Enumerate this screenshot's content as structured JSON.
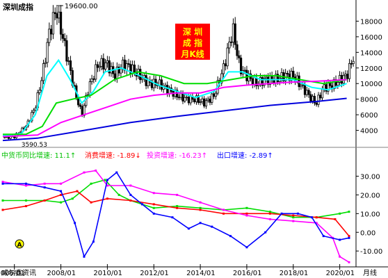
{
  "title": "深圳成指",
  "badge": {
    "lines": [
      "深  圳",
      "成  指",
      "月K线"
    ],
    "bg": "#ff0000",
    "fg": "#ffff00"
  },
  "annotations": {
    "peak_label": "19600.00",
    "low_label": "3590.53"
  },
  "indicator_legend": [
    {
      "text": "中货币同比增速: 11.1↑",
      "color": "#00c000"
    },
    {
      "text": "消费增速: -1.89↓",
      "color": "#ff0000"
    },
    {
      "text": "投资增速: -16.23↑",
      "color": "#ff00ff"
    },
    {
      "text": "出口增速: -2.89↑",
      "color": "#0000ff"
    }
  ],
  "footer": {
    "source_label": "威尔鑫资讯",
    "end_label": "月线"
  },
  "chart_data": [
    {
      "type": "candlestick",
      "title": "深圳成指",
      "x_ticks": [
        "006/01",
        "2008/01",
        "2010/01",
        "2012/01",
        "2014/01",
        "2016/01",
        "2018/01",
        "2020/01"
      ],
      "y_ticks": [
        4000,
        6000,
        8000,
        10000,
        12000,
        14000,
        16000,
        18000
      ],
      "ylim": [
        2000,
        20000
      ],
      "grid": false,
      "close_points": [
        {
          "x": 2005.5,
          "y": 3100
        },
        {
          "x": 2006.0,
          "y": 3200
        },
        {
          "x": 2006.5,
          "y": 4500
        },
        {
          "x": 2006.9,
          "y": 7000
        },
        {
          "x": 2007.2,
          "y": 11000
        },
        {
          "x": 2007.5,
          "y": 16500
        },
        {
          "x": 2007.8,
          "y": 19600
        },
        {
          "x": 2008.0,
          "y": 17000
        },
        {
          "x": 2008.3,
          "y": 13000
        },
        {
          "x": 2008.6,
          "y": 9000
        },
        {
          "x": 2008.9,
          "y": 6000
        },
        {
          "x": 2009.2,
          "y": 9500
        },
        {
          "x": 2009.6,
          "y": 12500
        },
        {
          "x": 2010.0,
          "y": 12500
        },
        {
          "x": 2010.3,
          "y": 11000
        },
        {
          "x": 2010.7,
          "y": 12500
        },
        {
          "x": 2011.0,
          "y": 12000
        },
        {
          "x": 2011.4,
          "y": 11000
        },
        {
          "x": 2011.8,
          "y": 10000
        },
        {
          "x": 2012.2,
          "y": 10000
        },
        {
          "x": 2012.6,
          "y": 9200
        },
        {
          "x": 2013.0,
          "y": 8500
        },
        {
          "x": 2013.4,
          "y": 8000
        },
        {
          "x": 2013.8,
          "y": 8000
        },
        {
          "x": 2014.2,
          "y": 7500
        },
        {
          "x": 2014.6,
          "y": 8500
        },
        {
          "x": 2015.0,
          "y": 12000
        },
        {
          "x": 2015.4,
          "y": 17000
        },
        {
          "x": 2015.7,
          "y": 12000
        },
        {
          "x": 2016.0,
          "y": 11000
        },
        {
          "x": 2016.4,
          "y": 10000
        },
        {
          "x": 2016.8,
          "y": 10500
        },
        {
          "x": 2017.2,
          "y": 10500
        },
        {
          "x": 2017.6,
          "y": 11000
        },
        {
          "x": 2018.0,
          "y": 11000
        },
        {
          "x": 2018.4,
          "y": 9500
        },
        {
          "x": 2018.8,
          "y": 8000
        },
        {
          "x": 2019.0,
          "y": 7500
        },
        {
          "x": 2019.3,
          "y": 9500
        },
        {
          "x": 2019.7,
          "y": 9800
        },
        {
          "x": 2020.0,
          "y": 10500
        },
        {
          "x": 2020.3,
          "y": 11000
        },
        {
          "x": 2020.6,
          "y": 13500
        }
      ],
      "moving_averages": [
        {
          "color": "#00ffff",
          "points": [
            {
              "x": 2005.5,
              "y": 3300
            },
            {
              "x": 2006.3,
              "y": 3600
            },
            {
              "x": 2006.9,
              "y": 6000
            },
            {
              "x": 2007.4,
              "y": 11000
            },
            {
              "x": 2007.9,
              "y": 13000
            },
            {
              "x": 2008.4,
              "y": 10500
            },
            {
              "x": 2008.9,
              "y": 7500
            },
            {
              "x": 2009.4,
              "y": 9000
            },
            {
              "x": 2009.9,
              "y": 11500
            },
            {
              "x": 2010.6,
              "y": 12000
            },
            {
              "x": 2011.4,
              "y": 11000
            },
            {
              "x": 2012.2,
              "y": 9800
            },
            {
              "x": 2013.0,
              "y": 9000
            },
            {
              "x": 2013.8,
              "y": 8200
            },
            {
              "x": 2014.6,
              "y": 9000
            },
            {
              "x": 2015.2,
              "y": 11500
            },
            {
              "x": 2015.8,
              "y": 11500
            },
            {
              "x": 2016.6,
              "y": 10500
            },
            {
              "x": 2017.4,
              "y": 10500
            },
            {
              "x": 2018.0,
              "y": 10500
            },
            {
              "x": 2018.8,
              "y": 9500
            },
            {
              "x": 2019.5,
              "y": 9200
            },
            {
              "x": 2020.3,
              "y": 10000
            }
          ]
        },
        {
          "color": "#00dd00",
          "points": [
            {
              "x": 2005.5,
              "y": 3500
            },
            {
              "x": 2006.5,
              "y": 3500
            },
            {
              "x": 2007.2,
              "y": 4500
            },
            {
              "x": 2007.8,
              "y": 7500
            },
            {
              "x": 2008.5,
              "y": 8000
            },
            {
              "x": 2009.3,
              "y": 8500
            },
            {
              "x": 2010.3,
              "y": 10500
            },
            {
              "x": 2011.3,
              "y": 11500
            },
            {
              "x": 2012.3,
              "y": 11000
            },
            {
              "x": 2013.3,
              "y": 10000
            },
            {
              "x": 2014.3,
              "y": 10000
            },
            {
              "x": 2015.3,
              "y": 10500
            },
            {
              "x": 2016.3,
              "y": 11000
            },
            {
              "x": 2017.3,
              "y": 11000
            },
            {
              "x": 2018.3,
              "y": 10500
            },
            {
              "x": 2019.3,
              "y": 10000
            },
            {
              "x": 2020.3,
              "y": 10500
            }
          ]
        },
        {
          "color": "#ff00ff",
          "points": [
            {
              "x": 2005.5,
              "y": 3200
            },
            {
              "x": 2007.0,
              "y": 3400
            },
            {
              "x": 2008.0,
              "y": 5000
            },
            {
              "x": 2009.0,
              "y": 6000
            },
            {
              "x": 2010.0,
              "y": 7000
            },
            {
              "x": 2011.0,
              "y": 8000
            },
            {
              "x": 2012.0,
              "y": 8500
            },
            {
              "x": 2013.0,
              "y": 8800
            },
            {
              "x": 2014.0,
              "y": 8800
            },
            {
              "x": 2015.0,
              "y": 9500
            },
            {
              "x": 2016.0,
              "y": 9800
            },
            {
              "x": 2017.0,
              "y": 10000
            },
            {
              "x": 2018.0,
              "y": 10200
            },
            {
              "x": 2019.0,
              "y": 10300
            },
            {
              "x": 2020.3,
              "y": 10500
            }
          ]
        },
        {
          "color": "#0000dd",
          "points": [
            {
              "x": 2005.5,
              "y": 2700
            },
            {
              "x": 2007.0,
              "y": 3000
            },
            {
              "x": 2009.0,
              "y": 4000
            },
            {
              "x": 2011.0,
              "y": 5000
            },
            {
              "x": 2013.0,
              "y": 5800
            },
            {
              "x": 2015.0,
              "y": 6500
            },
            {
              "x": 2017.0,
              "y": 7200
            },
            {
              "x": 2019.0,
              "y": 7700
            },
            {
              "x": 2020.3,
              "y": 8100
            }
          ]
        }
      ]
    },
    {
      "type": "line",
      "y_ticks": [
        -10.0,
        0.0,
        10.0,
        20.0,
        30.0
      ],
      "ylim": [
        -17,
        38
      ],
      "grid": false,
      "series": [
        {
          "color": "#00dd00",
          "values": [
            {
              "x": 2005.5,
              "y": 17
            },
            {
              "x": 2006.5,
              "y": 17
            },
            {
              "x": 2007.3,
              "y": 17
            },
            {
              "x": 2008.0,
              "y": 16
            },
            {
              "x": 2008.5,
              "y": 18
            },
            {
              "x": 2009.3,
              "y": 26
            },
            {
              "x": 2009.9,
              "y": 28
            },
            {
              "x": 2010.5,
              "y": 20
            },
            {
              "x": 2011.0,
              "y": 17
            },
            {
              "x": 2011.5,
              "y": 15
            },
            {
              "x": 2012.0,
              "y": 13
            },
            {
              "x": 2013.0,
              "y": 14
            },
            {
              "x": 2014.0,
              "y": 13
            },
            {
              "x": 2015.0,
              "y": 12
            },
            {
              "x": 2016.0,
              "y": 13
            },
            {
              "x": 2017.0,
              "y": 11
            },
            {
              "x": 2018.0,
              "y": 8
            },
            {
              "x": 2019.0,
              "y": 8
            },
            {
              "x": 2020.0,
              "y": 10
            },
            {
              "x": 2020.4,
              "y": 11
            }
          ]
        },
        {
          "color": "#ff0000",
          "values": [
            {
              "x": 2005.5,
              "y": 12
            },
            {
              "x": 2006.5,
              "y": 14
            },
            {
              "x": 2007.3,
              "y": 17
            },
            {
              "x": 2008.0,
              "y": 20
            },
            {
              "x": 2008.7,
              "y": 22
            },
            {
              "x": 2009.3,
              "y": 16
            },
            {
              "x": 2010.0,
              "y": 18
            },
            {
              "x": 2011.0,
              "y": 17
            },
            {
              "x": 2012.0,
              "y": 15
            },
            {
              "x": 2013.0,
              "y": 13
            },
            {
              "x": 2014.0,
              "y": 12
            },
            {
              "x": 2015.0,
              "y": 10
            },
            {
              "x": 2016.0,
              "y": 10
            },
            {
              "x": 2017.0,
              "y": 10
            },
            {
              "x": 2018.0,
              "y": 9
            },
            {
              "x": 2019.0,
              "y": 8
            },
            {
              "x": 2019.8,
              "y": 7
            },
            {
              "x": 2020.4,
              "y": -2
            }
          ]
        },
        {
          "color": "#ff00ff",
          "values": [
            {
              "x": 2005.5,
              "y": 27
            },
            {
              "x": 2006.5,
              "y": 25
            },
            {
              "x": 2007.3,
              "y": 26
            },
            {
              "x": 2008.0,
              "y": 26
            },
            {
              "x": 2009.0,
              "y": 32
            },
            {
              "x": 2009.5,
              "y": 33
            },
            {
              "x": 2010.0,
              "y": 25
            },
            {
              "x": 2011.0,
              "y": 25
            },
            {
              "x": 2012.0,
              "y": 21
            },
            {
              "x": 2013.0,
              "y": 20
            },
            {
              "x": 2014.0,
              "y": 16
            },
            {
              "x": 2015.0,
              "y": 12
            },
            {
              "x": 2016.0,
              "y": 9
            },
            {
              "x": 2017.0,
              "y": 7
            },
            {
              "x": 2018.0,
              "y": 6
            },
            {
              "x": 2019.0,
              "y": 5
            },
            {
              "x": 2019.7,
              "y": -3
            },
            {
              "x": 2020.0,
              "y": -13
            },
            {
              "x": 2020.4,
              "y": -16
            }
          ]
        },
        {
          "color": "#0000ff",
          "values": [
            {
              "x": 2005.5,
              "y": 26
            },
            {
              "x": 2006.5,
              "y": 26
            },
            {
              "x": 2007.3,
              "y": 24
            },
            {
              "x": 2008.0,
              "y": 22
            },
            {
              "x": 2008.6,
              "y": 5
            },
            {
              "x": 2009.0,
              "y": -13
            },
            {
              "x": 2009.4,
              "y": -5
            },
            {
              "x": 2010.0,
              "y": 28
            },
            {
              "x": 2010.4,
              "y": 32
            },
            {
              "x": 2011.0,
              "y": 20
            },
            {
              "x": 2011.5,
              "y": 15
            },
            {
              "x": 2012.0,
              "y": 10
            },
            {
              "x": 2012.8,
              "y": 8
            },
            {
              "x": 2013.5,
              "y": 2
            },
            {
              "x": 2014.0,
              "y": 5
            },
            {
              "x": 2014.5,
              "y": 3
            },
            {
              "x": 2015.3,
              "y": -2
            },
            {
              "x": 2016.0,
              "y": -8
            },
            {
              "x": 2016.8,
              "y": 0
            },
            {
              "x": 2017.5,
              "y": 10
            },
            {
              "x": 2018.2,
              "y": 10
            },
            {
              "x": 2018.8,
              "y": 8
            },
            {
              "x": 2019.3,
              "y": -2
            },
            {
              "x": 2020.0,
              "y": -4
            },
            {
              "x": 2020.4,
              "y": -3
            }
          ]
        }
      ]
    }
  ]
}
